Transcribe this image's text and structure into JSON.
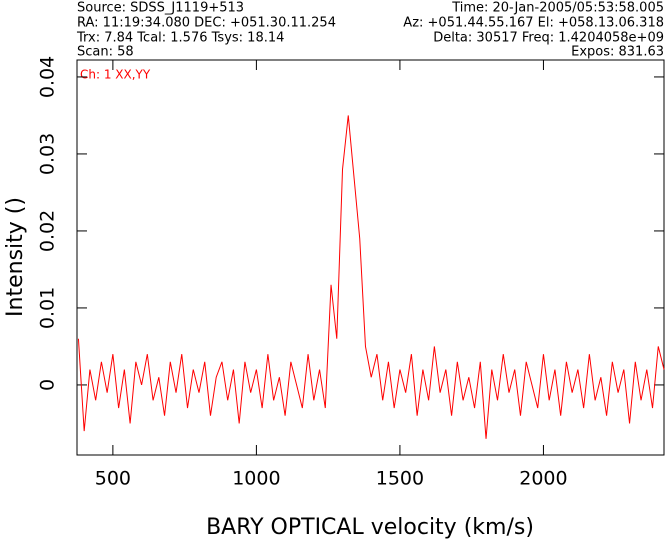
{
  "chart_data": {
    "type": "line",
    "header_left": [
      "Source: SDSS_J1119+513",
      "RA: 11:19:34.080 DEC: +051.30.11.254",
      "Trx: 7.84 Tcal: 1.576 Tsys: 18.14",
      "Scan: 58"
    ],
    "header_right": [
      "Time: 20-Jan-2005/05:53:58.005",
      "Az: +051.44.55.167 El: +058.13.06.318",
      "Delta: 30517 Freq: 1.4204058e+09",
      "Expos: 831.63"
    ],
    "annotation": "Ch: 1 XX,YY",
    "x_label": "BARY OPTICAL velocity (km/s)",
    "y_label": "Intensity ()",
    "xlim": [
      375,
      2420
    ],
    "xticks": [
      500,
      1000,
      1500,
      2000
    ],
    "ylim": [
      -0.0091,
      0.0422
    ],
    "yticks": [
      0,
      0.01,
      0.02,
      0.03,
      0.04
    ],
    "x": [
      380,
      400,
      420,
      440,
      460,
      480,
      500,
      520,
      540,
      560,
      580,
      600,
      620,
      640,
      660,
      680,
      700,
      720,
      740,
      760,
      780,
      800,
      820,
      840,
      860,
      880,
      900,
      920,
      940,
      960,
      980,
      1000,
      1020,
      1040,
      1060,
      1080,
      1100,
      1120,
      1140,
      1160,
      1180,
      1200,
      1220,
      1240,
      1260,
      1280,
      1300,
      1320,
      1340,
      1360,
      1380,
      1400,
      1420,
      1440,
      1460,
      1480,
      1500,
      1520,
      1540,
      1560,
      1580,
      1600,
      1620,
      1640,
      1660,
      1680,
      1700,
      1720,
      1740,
      1760,
      1780,
      1800,
      1820,
      1840,
      1860,
      1880,
      1900,
      1920,
      1940,
      1960,
      1980,
      2000,
      2020,
      2040,
      2060,
      2080,
      2100,
      2120,
      2140,
      2160,
      2180,
      2200,
      2220,
      2240,
      2260,
      2280,
      2300,
      2320,
      2340,
      2360,
      2380,
      2400,
      2420
    ],
    "series": [
      {
        "color": "#ff0000",
        "values": [
          0.006,
          -0.006,
          0.002,
          -0.002,
          0.003,
          -0.001,
          0.004,
          -0.003,
          0.002,
          -0.005,
          0.003,
          0.0,
          0.004,
          -0.002,
          0.001,
          -0.004,
          0.003,
          -0.001,
          0.004,
          -0.003,
          0.002,
          -0.001,
          0.003,
          -0.004,
          0.001,
          0.003,
          -0.002,
          0.002,
          -0.005,
          0.003,
          -0.001,
          0.002,
          -0.003,
          0.004,
          -0.002,
          0.001,
          -0.004,
          0.003,
          0.0,
          -0.003,
          0.004,
          -0.002,
          0.002,
          -0.003,
          0.013,
          0.006,
          0.028,
          0.035,
          0.027,
          0.019,
          0.005,
          0.001,
          0.004,
          -0.002,
          0.003,
          -0.003,
          0.002,
          -0.001,
          0.004,
          -0.004,
          0.002,
          -0.002,
          0.005,
          -0.001,
          0.002,
          -0.004,
          0.003,
          -0.002,
          0.001,
          -0.003,
          0.003,
          -0.007,
          0.002,
          -0.002,
          0.004,
          -0.001,
          0.002,
          -0.004,
          0.003,
          0.0,
          -0.003,
          0.004,
          -0.002,
          0.002,
          -0.004,
          0.003,
          -0.001,
          0.002,
          -0.003,
          0.004,
          -0.002,
          0.001,
          -0.004,
          0.003,
          -0.001,
          0.002,
          -0.005,
          0.003,
          -0.002,
          0.002,
          -0.003,
          0.005,
          0.002
        ]
      }
    ]
  }
}
